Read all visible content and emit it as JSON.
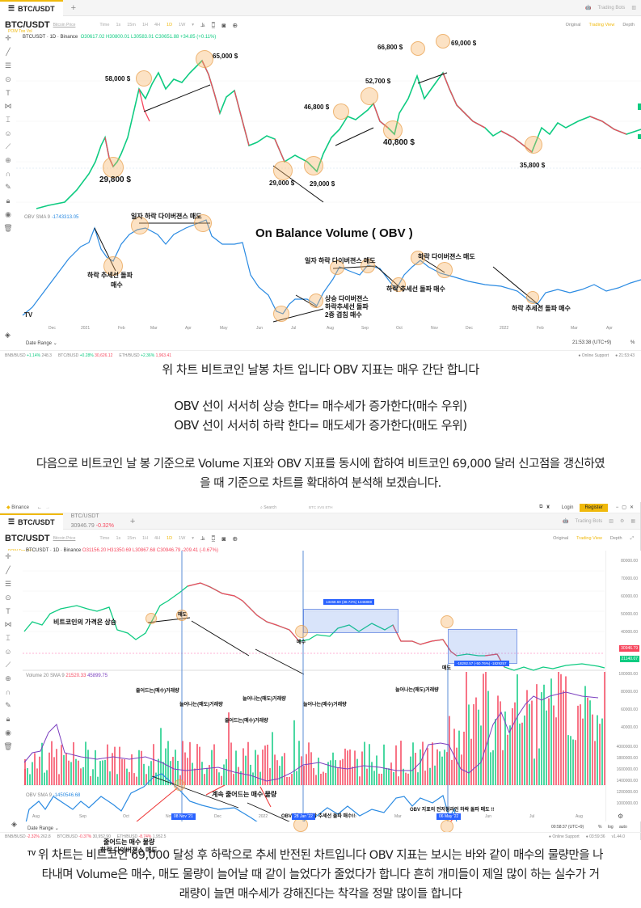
{
  "screen1": {
    "tab": {
      "label": "BTC/USDT"
    },
    "header_right": {
      "trading_bots": "Trading Bots"
    },
    "symbol": {
      "name": "BTC/USDT",
      "sub": "Bitcoin Price",
      "tags": "POW  Top Vol"
    },
    "intervals": [
      "Time",
      "1s",
      "15m",
      "1H",
      "4H",
      "1D",
      "1W"
    ],
    "active_interval": "1D",
    "views": {
      "original": "Original",
      "trading_view": "Trading View",
      "depth": "Depth"
    },
    "legend": {
      "pair": "BTCUSDT · 1D · Binance",
      "ohlc": "O30617.02 H30800.01 L30583.01 C30651.88 +34.85 (+0.11%)"
    },
    "obv_legend": {
      "name": "OBV SMA 9",
      "value": "-1743313.05"
    },
    "price_annotations": [
      "65,000 $",
      "58,000 $",
      "29,800 $",
      "29,000 $",
      "29,000 $",
      "46,800 $",
      "52,700 $",
      "40,800 $",
      "66,800 $",
      "69,000 $",
      "35,800 $"
    ],
    "obv_title": "On Balance Volume ( OBV )",
    "obv_annotations": {
      "a1": "일자 하락 다이버젼스 매도",
      "a2_l1": "하락 추세선 돌파",
      "a2_l2": "매수",
      "a3": "일자 하락 다이버젼스 매도",
      "a4": "하락 다이버젼스 매도",
      "a5": "하락 추세선 돌파 매수",
      "a6_l1": "상승 다이버젼스",
      "a6_l2": "하락추세선 돌파",
      "a6_l3": "2중 겹침 매수",
      "a7": "하락 추세선 돌파 매수"
    },
    "x_ticks": [
      "Dec",
      "2021",
      "Feb",
      "Mar",
      "Apr",
      "May",
      "Jun",
      "Jul",
      "Aug",
      "Sep",
      "Oct",
      "Nov",
      "Dec",
      "2022",
      "Feb",
      "Mar",
      "Apr"
    ],
    "date_range": "Date Range",
    "time": "21:53:38 (UTC+9)",
    "percent": "%",
    "ticker": [
      {
        "pair": "BNB/BUSD",
        "chg": "+1.14%",
        "price": "248.3"
      },
      {
        "pair": "BTC/BUSD",
        "chg": "+0.28%",
        "price": "30,626.12"
      },
      {
        "pair": "ETH/BUSD",
        "chg": "+2.36%",
        "price": "1,963.41"
      }
    ],
    "online_support": "Online Support",
    "clock2": "21:53:43"
  },
  "text1": {
    "line1": "위 차트 비트코인 날봉 차트 입니다 OBV 지표는 매우 간단 합니다",
    "line2": "OBV 선이 서서히 상승 한다= 매수세가 증가한다(매수 우위)",
    "line3": "OBV 선이 서서히 하락 한다= 매도세가 증가한다(매도 우위)",
    "line4": "다음으로 비트코인 날 봉 기준으로 Volume 지표와 OBV 지표를 동시에 합하여 비트코인 69,000 달러 신고점을 갱신하였",
    "line5": "을 때 기준으로 차트를 확대하여 분석해 보겠습니다."
  },
  "screen2": {
    "app": "Binance",
    "search_placeholder": "Search",
    "search_hint": "BTC  XVS  ETH",
    "login": "Login",
    "register": "Register",
    "tab1": "BTC/USDT",
    "tab2_name": "BTC/USDT",
    "tab2_price": "30946.79",
    "tab2_chg": "-0.32%",
    "trading_bots": "Trading Bots",
    "symbol": {
      "name": "BTC/USDT",
      "sub": "Bitcoin Price",
      "tags": "POW  Top Vol"
    },
    "intervals": [
      "Time",
      "1s",
      "15m",
      "1H",
      "4H",
      "1D",
      "1W"
    ],
    "views": {
      "original": "Original",
      "trading_view": "Trading View",
      "depth": "Depth"
    },
    "legend": {
      "pair": "BTCUSDT · 1D · Binance",
      "ohlc": "O31156.20 H31350.69 L30867.68 C30946.79 -209.41 (-0.67%)"
    },
    "volume_legend": {
      "name": "Volume 20 SMA 9",
      "v1": "21520.33",
      "v2": "45899.75"
    },
    "obv_legend": {
      "name": "OBV SMA 9",
      "value": "-1450546.68"
    },
    "price_annotations": {
      "rise": "비트코인의 가격은 상승",
      "sell1": "매도",
      "buy1": "매수",
      "sell2": "매도"
    },
    "range_box1": "13468.69 (38.72%) 1346869",
    "range_box2": "-18292.57 (-50.76%) -1829257",
    "price_axis": [
      "80000.00",
      "70000.00",
      "60000.00",
      "50000.00",
      "40000.00"
    ],
    "last_price": "30946.79",
    "last_price2": "21140.07",
    "volume_axis": [
      "100000.00",
      "80000.00",
      "60000.00",
      "40000.00"
    ],
    "obv_axis": [
      "4000000.00",
      "1800000.00",
      "1600000.00",
      "1400000.00",
      "1200000.00",
      "1000000.00"
    ],
    "volume_annotations": {
      "v1": "줄어드는(매수)거래량",
      "v2": "늘어나는(매도)거래량",
      "v3": "줄어드는(매수)거래량",
      "v4": "늘어나는(매도)거래량",
      "v5": "늘어나는(매수)거래량",
      "v6": "늘어나는(매도)거래량"
    },
    "obv_annotations": {
      "o1": "계속 줄어드는 매수 물량",
      "o2_l1": "줄어드는 매수 물량",
      "o2_l2": "하락 다이버젼스 매도",
      "o3": "OBV 지표의 하락 추세선 돌파 매수!!",
      "o4": "OBV 지표의 전저점라인 하락 돌파 매도 !!"
    },
    "x_ticks": [
      "Aug",
      "Sep",
      "Oct",
      "Nov",
      "Dec",
      "2022",
      "Feb",
      "Mar",
      "Apr",
      "May",
      "Jun",
      "Jul",
      "Aug"
    ],
    "date_flags": [
      "08 Nov '21",
      "28 Jan '22",
      "06 May '22"
    ],
    "date_range": "Date Range",
    "time": "00:58:37 (UTC+9)",
    "scale": {
      "percent": "%",
      "log": "log",
      "auto": "auto"
    },
    "ticker": [
      {
        "pair": "BNB/BUSD",
        "chg": "-2.32%",
        "price": "262.8"
      },
      {
        "pair": "BTC/BUSD",
        "chg": "-0.37%",
        "price": "30,952.90"
      },
      {
        "pair": "ETH/BUSD",
        "chg": "-8.74%",
        "price": "1,952.5"
      }
    ],
    "online_support": "Online Support",
    "clock2": "03:59:36",
    "version": "v1.44.0"
  },
  "text2": {
    "line1": "위 차트는 비트코인 69,000 달성 후 하락으로 추세 반전된 차트입니다 OBV 지표는 보시는 바와 같이 매수의 물량만을 나",
    "line2": "타내며 Volume은 매수, 매도 물량이 늘어날 때 같이 늘었다가 줄었다가 합니다 흔히 개미들이 제일 많이 하는 실수가 거",
    "line3": "래량이 늘면 매수세가 강해진다는 착각을 정말 많이들 합니다"
  },
  "colors": {
    "up": "#0ecb81",
    "down": "#f6465d",
    "obv": "#2a8ae2",
    "accent": "#f0b90b",
    "sma": "#7b3fbf"
  }
}
